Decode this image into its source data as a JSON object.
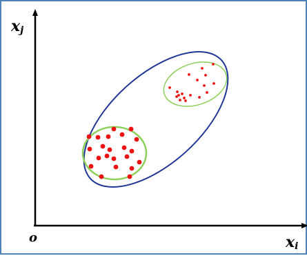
{
  "labels": {
    "y_axis": "x",
    "y_sub": "j",
    "x_axis": "x",
    "x_sub": "i",
    "origin": "o"
  },
  "colors": {
    "frame": "#4f81bd",
    "axis": "#000000",
    "outer_ellipse": "#1f3694",
    "cluster_ellipse": "#8ccf5a",
    "points": "#ee1111"
  },
  "clusters": {
    "large": [
      [
        127,
        196
      ],
      [
        140,
        197
      ],
      [
        155,
        196
      ],
      [
        163,
        185
      ],
      [
        175,
        193
      ],
      [
        188,
        185
      ],
      [
        196,
        200
      ],
      [
        128,
        214
      ],
      [
        147,
        210
      ],
      [
        157,
        215
      ],
      [
        178,
        212
      ],
      [
        189,
        217
      ],
      [
        141,
        227
      ],
      [
        153,
        224
      ],
      [
        163,
        228
      ],
      [
        182,
        225
      ],
      [
        200,
        233
      ],
      [
        130,
        239
      ],
      [
        166,
        240
      ],
      [
        189,
        242
      ],
      [
        145,
        254
      ],
      [
        186,
        254
      ]
    ],
    "small": [
      [
        307,
        91
      ],
      [
        291,
        97
      ],
      [
        272,
        106
      ],
      [
        296,
        107
      ],
      [
        284,
        114
      ],
      [
        308,
        119
      ],
      [
        244,
        125
      ],
      [
        294,
        122
      ],
      [
        255,
        131
      ],
      [
        262,
        134
      ],
      [
        257,
        136
      ],
      [
        265,
        140
      ],
      [
        274,
        136
      ],
      [
        287,
        139
      ],
      [
        298,
        132
      ],
      [
        259,
        143
      ],
      [
        267,
        144
      ],
      [
        254,
        138
      ]
    ]
  }
}
